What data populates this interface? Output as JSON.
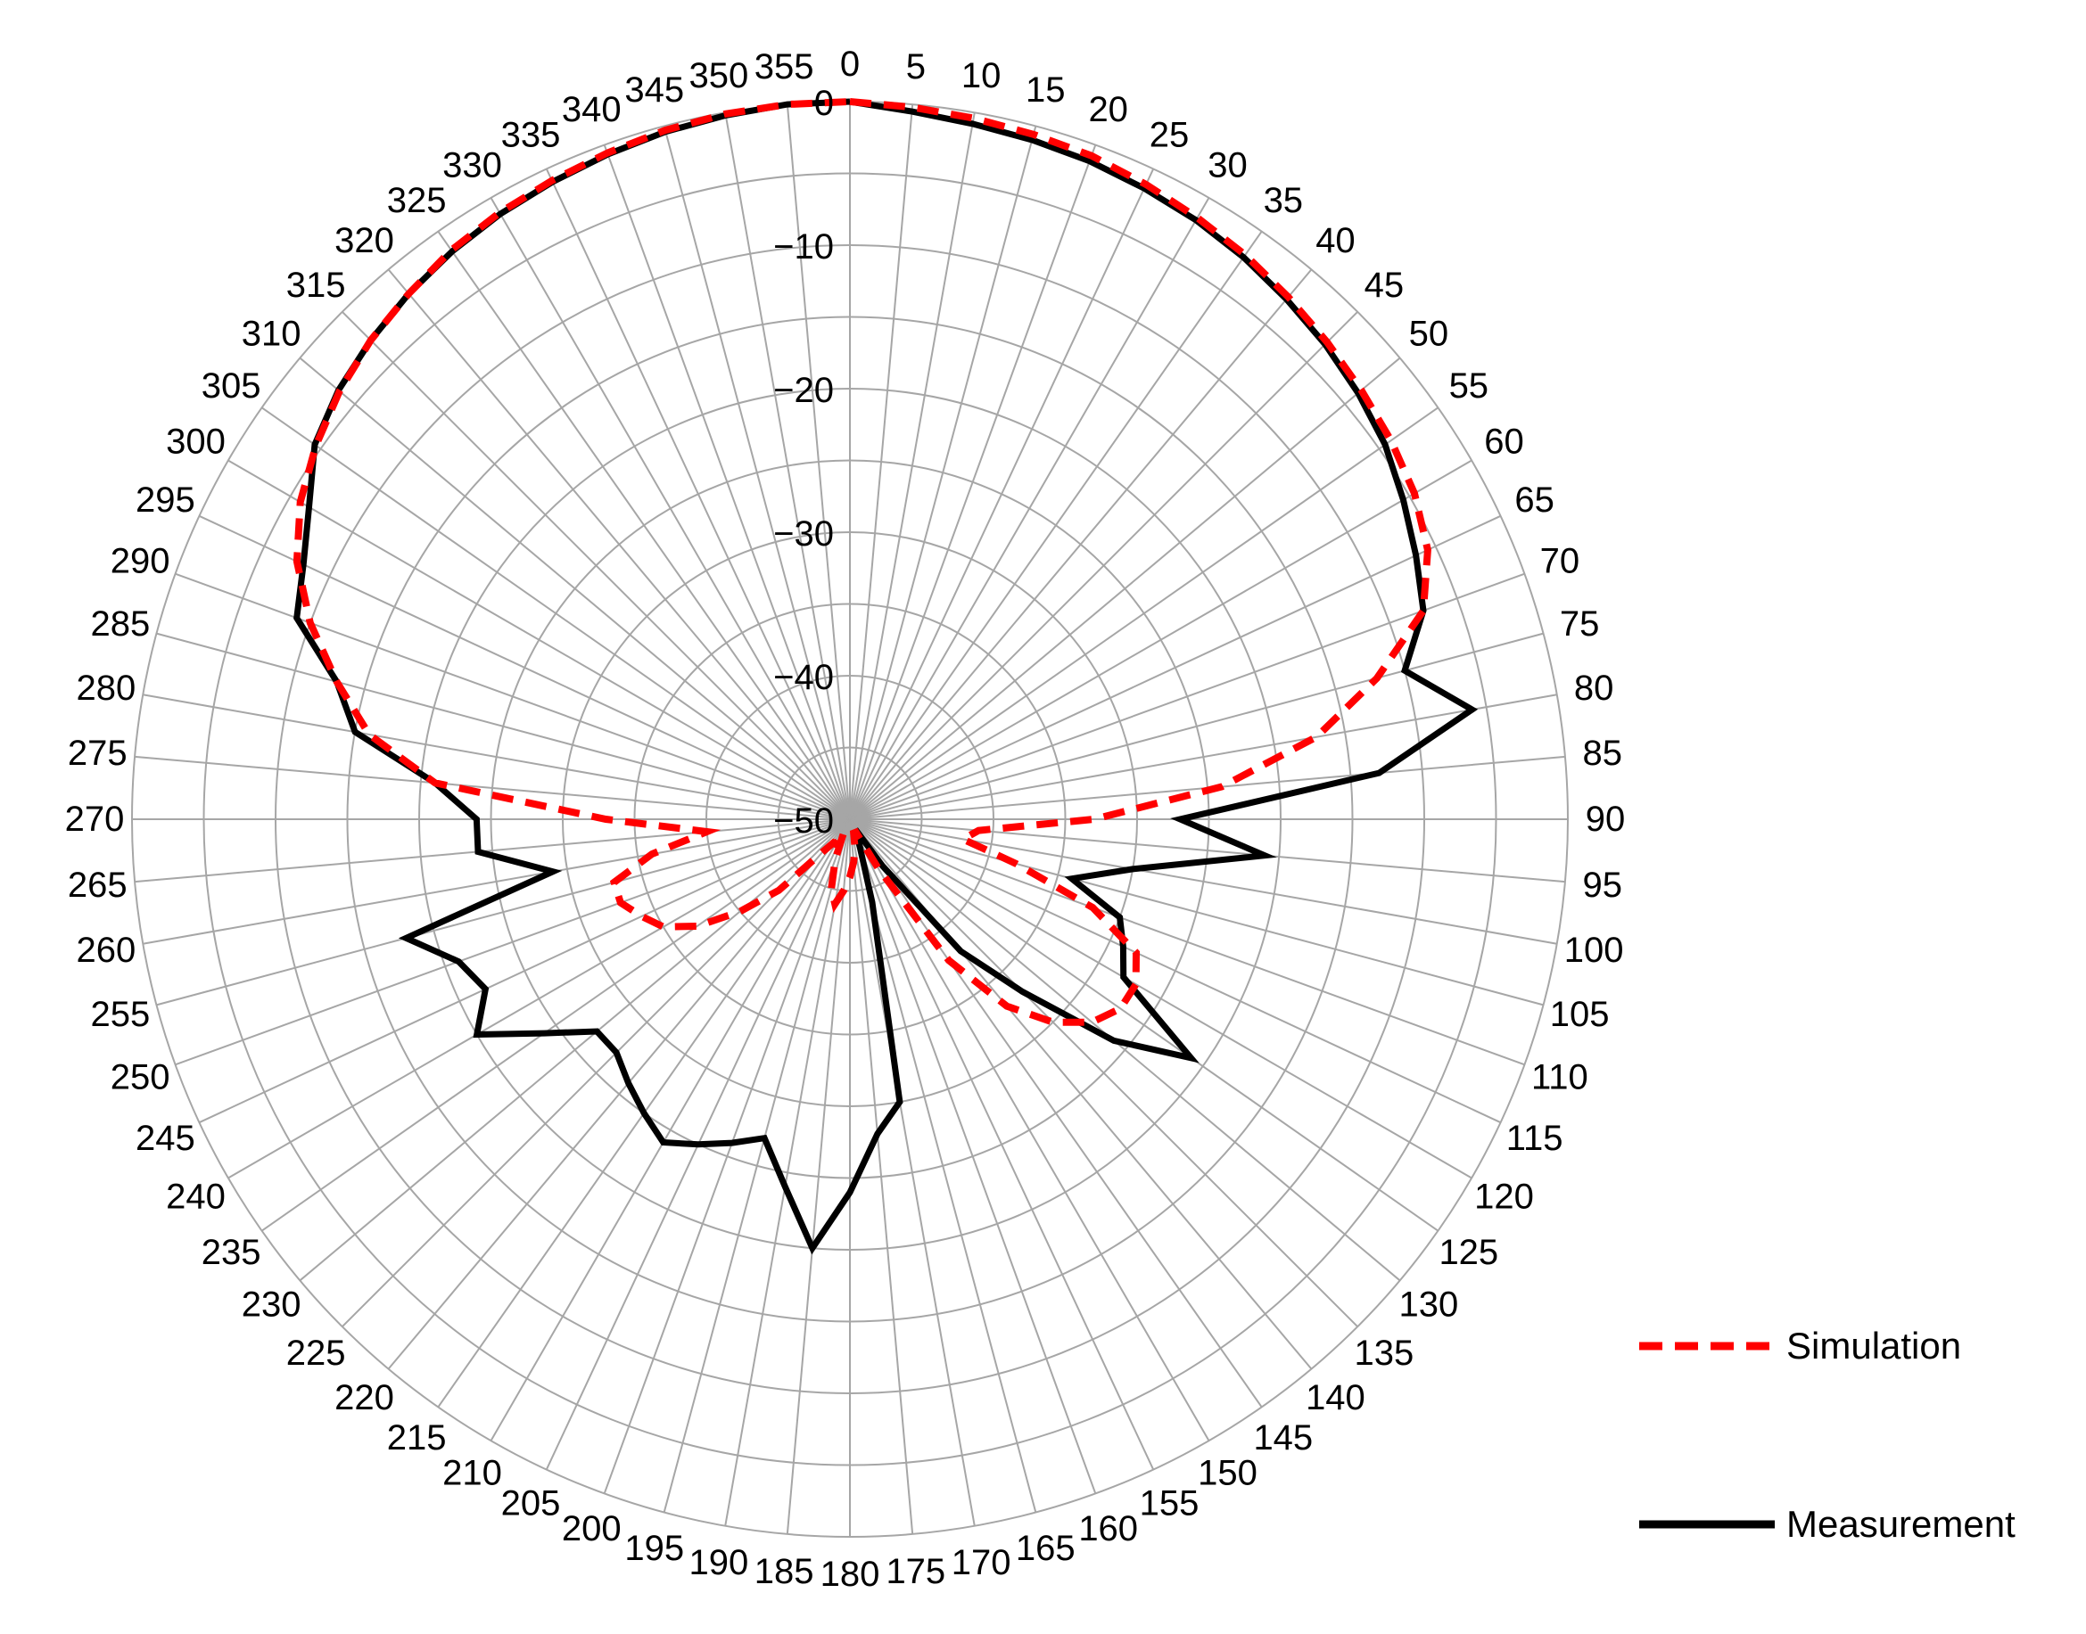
{
  "chart_data": {
    "type": "line",
    "subtype": "polar",
    "title": "",
    "angular_axis": {
      "unit": "degrees",
      "direction": "clockwise",
      "zero_at": "top",
      "step": 5,
      "tick_labels": [
        "0",
        "5",
        "10",
        "15",
        "20",
        "25",
        "30",
        "35",
        "40",
        "45",
        "50",
        "55",
        "60",
        "65",
        "70",
        "75",
        "80",
        "85",
        "90",
        "95",
        "100",
        "105",
        "110",
        "115",
        "120",
        "125",
        "130",
        "135",
        "140",
        "145",
        "150",
        "155",
        "160",
        "165",
        "170",
        "175",
        "180",
        "185",
        "190",
        "195",
        "200",
        "205",
        "210",
        "215",
        "220",
        "225",
        "230",
        "235",
        "240",
        "245",
        "250",
        "255",
        "260",
        "265",
        "270",
        "275",
        "280",
        "285",
        "290",
        "295",
        "300",
        "305",
        "310",
        "315",
        "320",
        "325",
        "330",
        "335",
        "340",
        "345",
        "350",
        "355"
      ]
    },
    "radial_axis": {
      "range": [
        -50,
        0
      ],
      "ticks": [
        0,
        -10,
        -20,
        -30,
        -40,
        -50
      ],
      "tick_labels": [
        "0",
        "−10",
        "−20",
        "−30",
        "−40",
        "−50"
      ],
      "extra_rings": [
        -5,
        -15,
        -25,
        -35,
        -45
      ]
    },
    "grid": true,
    "legend": {
      "placement": "right-bottom"
    },
    "series": [
      {
        "name": "Simulation",
        "color": "#ff0000",
        "dash": "dashed",
        "theta": [
          0,
          5,
          10,
          15,
          20,
          25,
          30,
          35,
          40,
          45,
          50,
          55,
          60,
          65,
          70,
          75,
          80,
          85,
          90,
          95,
          100,
          105,
          110,
          115,
          120,
          125,
          130,
          135,
          140,
          145,
          150,
          155,
          160,
          165,
          170,
          175,
          180,
          185,
          190,
          195,
          200,
          205,
          210,
          215,
          220,
          225,
          230,
          235,
          240,
          245,
          250,
          255,
          260,
          265,
          270,
          275,
          280,
          285,
          290,
          295,
          300,
          305,
          310,
          315,
          320,
          325,
          330,
          335,
          340,
          345,
          350,
          355
        ],
        "values": [
          0,
          -0.2,
          -0.4,
          -0.6,
          -0.8,
          -1.2,
          -1.6,
          -2.0,
          -2.5,
          -3.0,
          -3.5,
          -4.0,
          -4.6,
          -5.6,
          -7.5,
          -12,
          -17,
          -24,
          -33,
          -41,
          -42,
          -38,
          -32,
          -28,
          -27,
          -27,
          -28,
          -30,
          -33,
          -38,
          -46,
          -49,
          -49,
          -49,
          -48,
          -47,
          -46,
          -45,
          -44,
          -45,
          -47,
          -49,
          -48,
          -48,
          -47,
          -43,
          -40,
          -37,
          -35,
          -34,
          -33,
          -33,
          -36,
          -40,
          -33,
          -21,
          -16,
          -13,
          -10,
          -7.5,
          -5.8,
          -4.6,
          -3.6,
          -2.8,
          -2.2,
          -1.6,
          -1.2,
          -0.9,
          -0.6,
          -0.3,
          -0.1,
          0
        ]
      },
      {
        "name": "Measurement",
        "color": "#000000",
        "dash": "solid",
        "theta": [
          0,
          5,
          10,
          15,
          20,
          25,
          30,
          35,
          40,
          45,
          50,
          55,
          60,
          65,
          70,
          75,
          80,
          85,
          90,
          95,
          100,
          105,
          110,
          115,
          120,
          125,
          130,
          135,
          140,
          145,
          150,
          155,
          160,
          165,
          170,
          175,
          180,
          185,
          190,
          195,
          200,
          205,
          210,
          215,
          220,
          225,
          230,
          235,
          240,
          245,
          250,
          255,
          260,
          265,
          270,
          275,
          280,
          285,
          290,
          295,
          300,
          305,
          310,
          315,
          320,
          325,
          330,
          335,
          340,
          345,
          350,
          355
        ],
        "values": [
          0,
          -0.5,
          -0.8,
          -1.0,
          -1.2,
          -1.5,
          -1.8,
          -2.2,
          -2.7,
          -3.2,
          -3.8,
          -4.5,
          -5.5,
          -6.5,
          -7.5,
          -10,
          -6,
          -13,
          -27,
          -21,
          -30,
          -34,
          -30,
          -29,
          -28,
          -21,
          -26,
          -33,
          -38,
          -46,
          -49,
          -49,
          -48,
          -44,
          -30,
          -28,
          -24,
          -20,
          -24,
          -27,
          -26,
          -25,
          -24,
          -25,
          -26,
          -27,
          -27,
          -24,
          -20,
          -22,
          -21,
          -18,
          -29,
          -24,
          -24,
          -21,
          -15,
          -13,
          -9,
          -8,
          -6.5,
          -4.5,
          -3.5,
          -2.8,
          -2.2,
          -1.7,
          -1.3,
          -1.0,
          -0.7,
          -0.4,
          -0.2,
          0
        ]
      }
    ]
  }
}
